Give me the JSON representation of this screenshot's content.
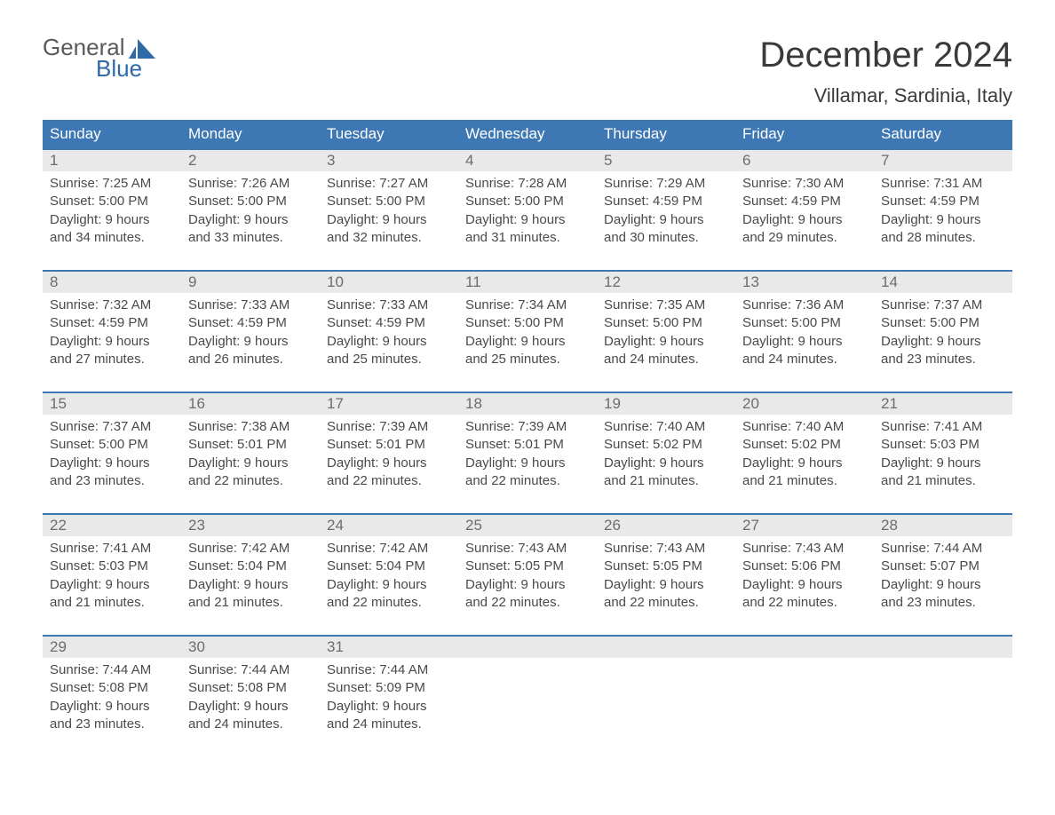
{
  "brand": {
    "line1": "General",
    "line2": "Blue",
    "grey": "#5a5a5a",
    "blue": "#2e6aa8"
  },
  "header": {
    "title": "December 2024",
    "subtitle": "Villamar, Sardinia, Italy"
  },
  "calendar": {
    "header_bg": "#3d78b5",
    "day_header_bg": "#e9e9e9",
    "days_of_week": [
      "Sunday",
      "Monday",
      "Tuesday",
      "Wednesday",
      "Thursday",
      "Friday",
      "Saturday"
    ],
    "labels": {
      "sunrise": "Sunrise:",
      "sunset": "Sunset:",
      "daylight": "Daylight:"
    },
    "weeks": [
      [
        {
          "n": "1",
          "sr": "7:25 AM",
          "ss": "5:00 PM",
          "dl": "9 hours and 34 minutes."
        },
        {
          "n": "2",
          "sr": "7:26 AM",
          "ss": "5:00 PM",
          "dl": "9 hours and 33 minutes."
        },
        {
          "n": "3",
          "sr": "7:27 AM",
          "ss": "5:00 PM",
          "dl": "9 hours and 32 minutes."
        },
        {
          "n": "4",
          "sr": "7:28 AM",
          "ss": "5:00 PM",
          "dl": "9 hours and 31 minutes."
        },
        {
          "n": "5",
          "sr": "7:29 AM",
          "ss": "4:59 PM",
          "dl": "9 hours and 30 minutes."
        },
        {
          "n": "6",
          "sr": "7:30 AM",
          "ss": "4:59 PM",
          "dl": "9 hours and 29 minutes."
        },
        {
          "n": "7",
          "sr": "7:31 AM",
          "ss": "4:59 PM",
          "dl": "9 hours and 28 minutes."
        }
      ],
      [
        {
          "n": "8",
          "sr": "7:32 AM",
          "ss": "4:59 PM",
          "dl": "9 hours and 27 minutes."
        },
        {
          "n": "9",
          "sr": "7:33 AM",
          "ss": "4:59 PM",
          "dl": "9 hours and 26 minutes."
        },
        {
          "n": "10",
          "sr": "7:33 AM",
          "ss": "4:59 PM",
          "dl": "9 hours and 25 minutes."
        },
        {
          "n": "11",
          "sr": "7:34 AM",
          "ss": "5:00 PM",
          "dl": "9 hours and 25 minutes."
        },
        {
          "n": "12",
          "sr": "7:35 AM",
          "ss": "5:00 PM",
          "dl": "9 hours and 24 minutes."
        },
        {
          "n": "13",
          "sr": "7:36 AM",
          "ss": "5:00 PM",
          "dl": "9 hours and 24 minutes."
        },
        {
          "n": "14",
          "sr": "7:37 AM",
          "ss": "5:00 PM",
          "dl": "9 hours and 23 minutes."
        }
      ],
      [
        {
          "n": "15",
          "sr": "7:37 AM",
          "ss": "5:00 PM",
          "dl": "9 hours and 23 minutes."
        },
        {
          "n": "16",
          "sr": "7:38 AM",
          "ss": "5:01 PM",
          "dl": "9 hours and 22 minutes."
        },
        {
          "n": "17",
          "sr": "7:39 AM",
          "ss": "5:01 PM",
          "dl": "9 hours and 22 minutes."
        },
        {
          "n": "18",
          "sr": "7:39 AM",
          "ss": "5:01 PM",
          "dl": "9 hours and 22 minutes."
        },
        {
          "n": "19",
          "sr": "7:40 AM",
          "ss": "5:02 PM",
          "dl": "9 hours and 21 minutes."
        },
        {
          "n": "20",
          "sr": "7:40 AM",
          "ss": "5:02 PM",
          "dl": "9 hours and 21 minutes."
        },
        {
          "n": "21",
          "sr": "7:41 AM",
          "ss": "5:03 PM",
          "dl": "9 hours and 21 minutes."
        }
      ],
      [
        {
          "n": "22",
          "sr": "7:41 AM",
          "ss": "5:03 PM",
          "dl": "9 hours and 21 minutes."
        },
        {
          "n": "23",
          "sr": "7:42 AM",
          "ss": "5:04 PM",
          "dl": "9 hours and 21 minutes."
        },
        {
          "n": "24",
          "sr": "7:42 AM",
          "ss": "5:04 PM",
          "dl": "9 hours and 22 minutes."
        },
        {
          "n": "25",
          "sr": "7:43 AM",
          "ss": "5:05 PM",
          "dl": "9 hours and 22 minutes."
        },
        {
          "n": "26",
          "sr": "7:43 AM",
          "ss": "5:05 PM",
          "dl": "9 hours and 22 minutes."
        },
        {
          "n": "27",
          "sr": "7:43 AM",
          "ss": "5:06 PM",
          "dl": "9 hours and 22 minutes."
        },
        {
          "n": "28",
          "sr": "7:44 AM",
          "ss": "5:07 PM",
          "dl": "9 hours and 23 minutes."
        }
      ],
      [
        {
          "n": "29",
          "sr": "7:44 AM",
          "ss": "5:08 PM",
          "dl": "9 hours and 23 minutes."
        },
        {
          "n": "30",
          "sr": "7:44 AM",
          "ss": "5:08 PM",
          "dl": "9 hours and 24 minutes."
        },
        {
          "n": "31",
          "sr": "7:44 AM",
          "ss": "5:09 PM",
          "dl": "9 hours and 24 minutes."
        },
        null,
        null,
        null,
        null
      ]
    ]
  }
}
